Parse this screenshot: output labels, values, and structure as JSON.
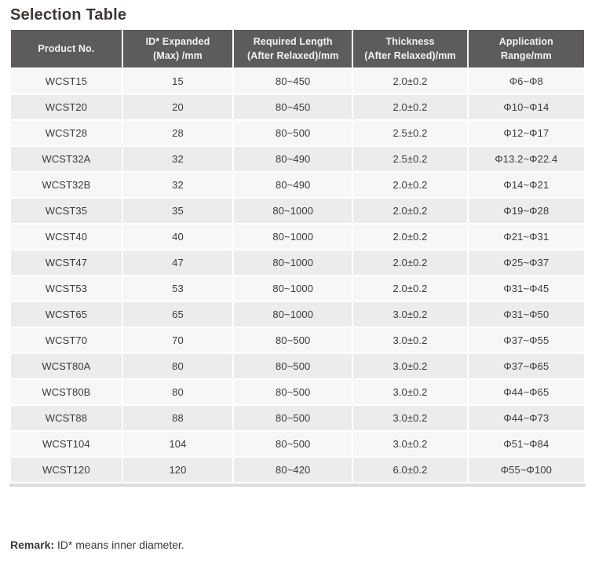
{
  "page": {
    "title": "Selection Table",
    "remark_label": "Remark:",
    "remark_text": " ID* means inner diameter."
  },
  "table": {
    "columns": [
      {
        "line1": "Product No.",
        "line2": ""
      },
      {
        "line1": "ID* Expanded",
        "line2": "(Max) /mm"
      },
      {
        "line1": "Required Length",
        "line2": "(After Relaxed)/mm"
      },
      {
        "line1": "Thickness",
        "line2": "(After Relaxed)/mm"
      },
      {
        "line1": "Application",
        "line2": "Range/mm"
      }
    ],
    "rows": [
      [
        "WCST15",
        "15",
        "80~450",
        "2.0±0.2",
        "Φ6~Φ8"
      ],
      [
        "WCST20",
        "20",
        "80~450",
        "2.0±0.2",
        "Φ10~Φ14"
      ],
      [
        "WCST28",
        "28",
        "80~500",
        "2.5±0.2",
        "Φ12~Φ17"
      ],
      [
        "WCST32A",
        "32",
        "80~490",
        "2.5±0.2",
        "Φ13.2~Φ22.4"
      ],
      [
        "WCST32B",
        "32",
        "80~490",
        "2.0±0.2",
        "Φ14~Φ21"
      ],
      [
        "WCST35",
        "35",
        "80~1000",
        "2.0±0.2",
        "Φ19~Φ28"
      ],
      [
        "WCST40",
        "40",
        "80~1000",
        "2.0±0.2",
        "Φ21~Φ31"
      ],
      [
        "WCST47",
        "47",
        "80~1000",
        "2.0±0.2",
        "Φ25~Φ37"
      ],
      [
        "WCST53",
        "53",
        "80~1000",
        "2.0±0.2",
        "Φ31~Φ45"
      ],
      [
        "WCST65",
        "65",
        "80~1000",
        "3.0±0.2",
        "Φ31~Φ50"
      ],
      [
        "WCST70",
        "70",
        "80~500",
        "3.0±0.2",
        "Φ37~Φ55"
      ],
      [
        "WCST80A",
        "80",
        "80~500",
        "3.0±0.2",
        "Φ37~Φ65"
      ],
      [
        "WCST80B",
        "80",
        "80~500",
        "3.0±0.2",
        "Φ44~Φ65"
      ],
      [
        "WCST88",
        "88",
        "80~500",
        "3.0±0.2",
        "Φ44~Φ73"
      ],
      [
        "WCST104",
        "104",
        "80~500",
        "3.0±0.2",
        "Φ51~Φ84"
      ],
      [
        "WCST120",
        "120",
        "80~420",
        "6.0±0.2",
        "Φ55~Φ100"
      ]
    ],
    "colors": {
      "header_bg": "#5e5b5c",
      "header_text": "#f4f3f3",
      "row_odd_bg": "#f7f7f7",
      "row_even_bg": "#ececec",
      "cell_text": "#3a3a3a",
      "bottom_border": "#dcdcdc"
    }
  }
}
